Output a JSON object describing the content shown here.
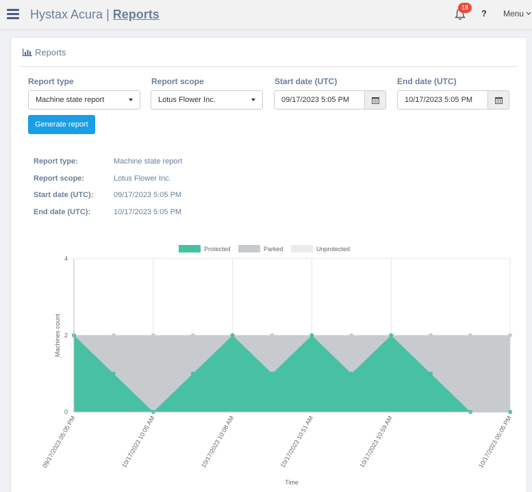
{
  "header": {
    "app_name": "Hystax Acura",
    "separator": "|",
    "page_link": "Reports",
    "notifications_count": "18",
    "help_label": "?",
    "menu_label": "Menu"
  },
  "card": {
    "title": "Reports"
  },
  "form": {
    "report_type_label": "Report type",
    "report_type_value": "Machine state report",
    "report_scope_label": "Report scope",
    "report_scope_value": "Lotus Flower Inc.",
    "start_date_label": "Start date (UTC)",
    "start_date_value": "09/17/2023 5:05 PM",
    "end_date_label": "End date (UTC)",
    "end_date_value": "10/17/2023 5:05 PM",
    "generate_label": "Generate report"
  },
  "summary": {
    "type_label": "Report type:",
    "type_value": "Machine state report",
    "scope_label": "Report scope:",
    "scope_value": "Lotus Flower Inc.",
    "start_label": "Start date (UTC):",
    "start_value": "09/17/2023 5:05 PM",
    "end_label": "End date (UTC):",
    "end_value": "10/17/2023 5:05 PM"
  },
  "colors": {
    "protected": "#48c0a4",
    "parked": "#c8cbce",
    "unprotected": "#ebebeb",
    "accent": "#1a9ee8",
    "badge": "#e74c3c"
  },
  "chart_data": {
    "type": "area",
    "stacked": true,
    "xlabel": "Time",
    "ylabel": "Machines count",
    "ylim": [
      0,
      4
    ],
    "yticks": [
      "0",
      "2",
      "4"
    ],
    "xticklabels": [
      "09/17/2023 05:05 PM",
      "10/17/2023 10:05 AM",
      "10/17/2023 10:08 AM",
      "10/17/2023 10:51 AM",
      "10/17/2023 10:59 AM",
      "10/17/2023 05:05 PM"
    ],
    "xtick_point_index": [
      0,
      2,
      4,
      6,
      8,
      11
    ],
    "legend": [
      "Protected",
      "Parked",
      "Unprotected"
    ],
    "series": [
      {
        "name": "Protected",
        "values": [
          2,
          1,
          0,
          1,
          2,
          1,
          2,
          1,
          2,
          1,
          0,
          0
        ]
      },
      {
        "name": "Parked",
        "values": [
          0,
          1,
          2,
          1,
          0,
          1,
          0,
          1,
          0,
          1,
          2,
          2
        ]
      },
      {
        "name": "Unprotected",
        "values": [
          0,
          0,
          0,
          0,
          0,
          0,
          0,
          0,
          0,
          0,
          0,
          0
        ]
      }
    ]
  }
}
